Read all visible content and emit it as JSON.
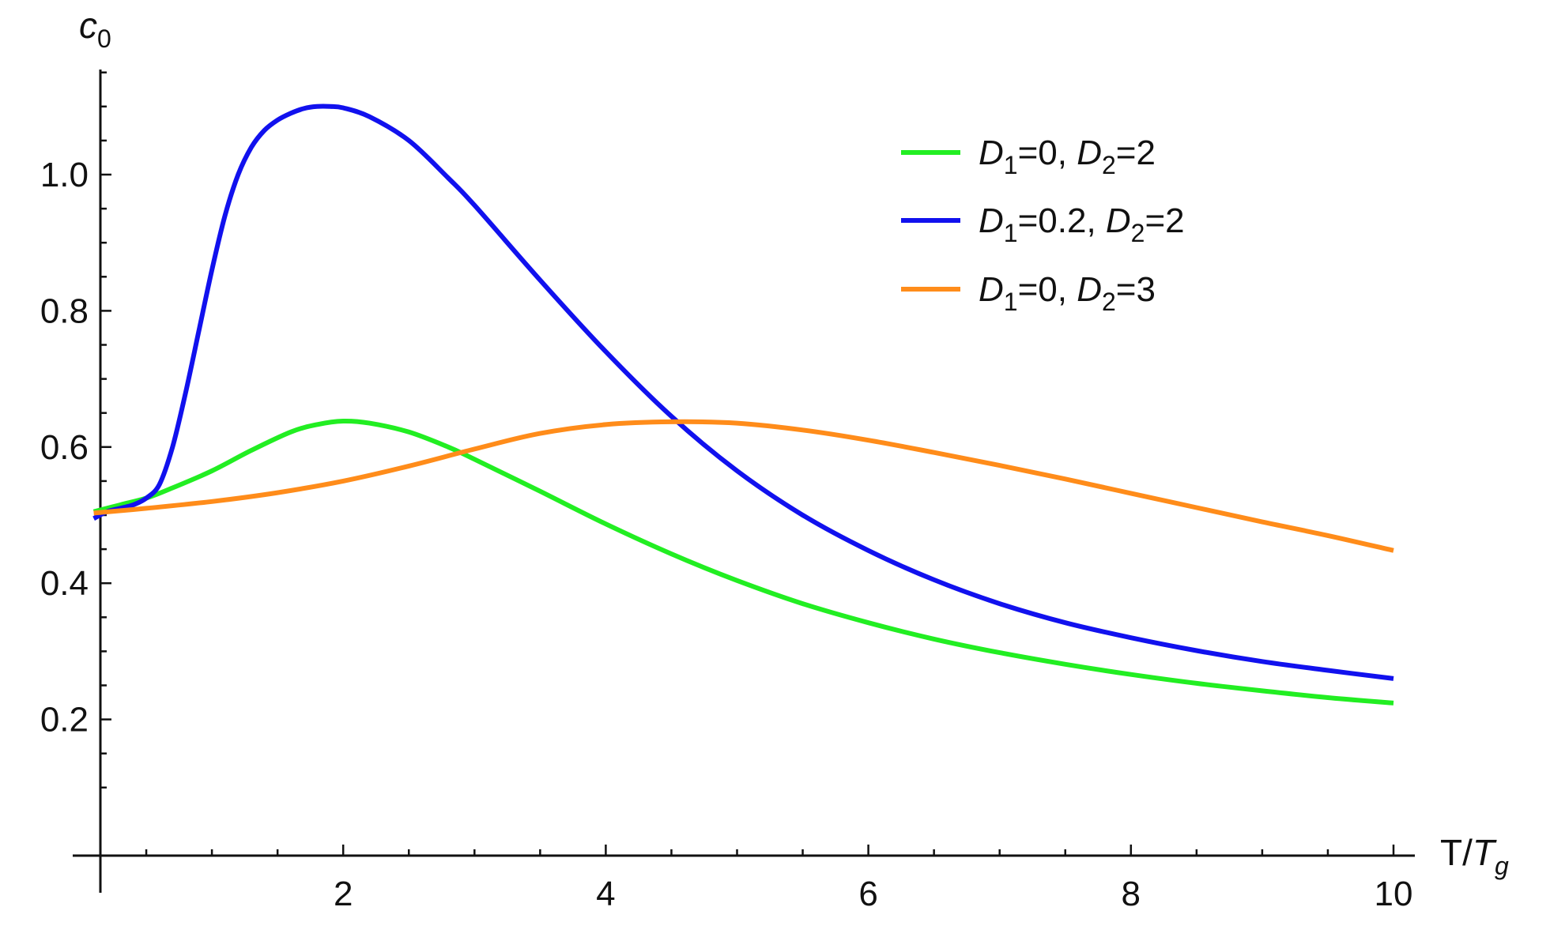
{
  "chart_data": {
    "type": "line",
    "title": "",
    "xlabel": {
      "main": "T/",
      "var": "T",
      "sub": "g"
    },
    "ylabel": {
      "var": "c",
      "sub": "0"
    },
    "xlim": [
      0,
      10
    ],
    "ylim": [
      0,
      1.1
    ],
    "x_ticks": [
      2,
      4,
      6,
      8,
      10
    ],
    "x_ticks_labels": [
      "2",
      "4",
      "6",
      "8",
      "10"
    ],
    "y_ticks": [
      0.2,
      0.4,
      0.6,
      0.8,
      1.0
    ],
    "y_ticks_labels": [
      "0.2",
      "0.4",
      "0.6",
      "0.8",
      "1.0"
    ],
    "x_minor_step": 0.5,
    "y_minor_step": 0.1,
    "grid": false,
    "legend_position": "top-right",
    "series": [
      {
        "name": "D1=0, D2=2",
        "label": {
          "d1": "D",
          "d1sub": "1",
          "d1val": "=0, ",
          "d2": "D",
          "d2sub": "2",
          "d2val": "=2"
        },
        "color": "#22ee22",
        "x": [
          0.1,
          0.3,
          0.5,
          0.7,
          1.0,
          1.3,
          1.6,
          1.8,
          2.0,
          2.2,
          2.5,
          2.8,
          3.0,
          3.5,
          4.0,
          4.5,
          5.0,
          5.5,
          6.0,
          6.5,
          7.0,
          7.5,
          8.0,
          8.5,
          9.0,
          9.5,
          10.0
        ],
        "y": [
          0.505,
          0.515,
          0.525,
          0.54,
          0.565,
          0.595,
          0.622,
          0.633,
          0.638,
          0.635,
          0.622,
          0.6,
          0.582,
          0.535,
          0.487,
          0.443,
          0.404,
          0.37,
          0.342,
          0.318,
          0.298,
          0.281,
          0.266,
          0.253,
          0.242,
          0.232,
          0.224
        ]
      },
      {
        "name": "D1=0.2, D2=2",
        "label": {
          "d1": "D",
          "d1sub": "1",
          "d1val": "=0.2, ",
          "d2": "D",
          "d2sub": "2",
          "d2val": "=2"
        },
        "color": "#1111ee",
        "x": [
          0.1,
          0.2,
          0.3,
          0.4,
          0.5,
          0.6,
          0.7,
          0.8,
          0.9,
          1.0,
          1.1,
          1.2,
          1.3,
          1.4,
          1.5,
          1.6,
          1.7,
          1.8,
          1.9,
          2.0,
          2.2,
          2.5,
          2.8,
          3.0,
          3.5,
          4.0,
          4.5,
          5.0,
          5.5,
          6.0,
          6.5,
          7.0,
          7.5,
          8.0,
          8.5,
          9.0,
          9.5,
          10.0
        ],
        "y": [
          0.495,
          0.505,
          0.51,
          0.515,
          0.525,
          0.545,
          0.6,
          0.68,
          0.77,
          0.86,
          0.94,
          1.0,
          1.04,
          1.065,
          1.08,
          1.09,
          1.097,
          1.1,
          1.1,
          1.098,
          1.085,
          1.05,
          0.995,
          0.955,
          0.845,
          0.74,
          0.645,
          0.565,
          0.5,
          0.448,
          0.405,
          0.37,
          0.342,
          0.32,
          0.301,
          0.285,
          0.272,
          0.26
        ]
      },
      {
        "name": "D1=0, D2=3",
        "label": {
          "d1": "D",
          "d1sub": "1",
          "d1val": "=0, ",
          "d2": "D",
          "d2sub": "2",
          "d2val": "=3"
        },
        "color": "#ff8c1a",
        "x": [
          0.1,
          0.5,
          1.0,
          1.5,
          2.0,
          2.5,
          3.0,
          3.5,
          4.0,
          4.5,
          5.0,
          5.5,
          6.0,
          6.5,
          7.0,
          7.5,
          8.0,
          8.5,
          9.0,
          9.5,
          10.0
        ],
        "y": [
          0.503,
          0.51,
          0.52,
          0.533,
          0.55,
          0.572,
          0.597,
          0.62,
          0.633,
          0.637,
          0.635,
          0.625,
          0.61,
          0.592,
          0.573,
          0.553,
          0.532,
          0.511,
          0.49,
          0.47,
          0.448
        ]
      }
    ]
  }
}
